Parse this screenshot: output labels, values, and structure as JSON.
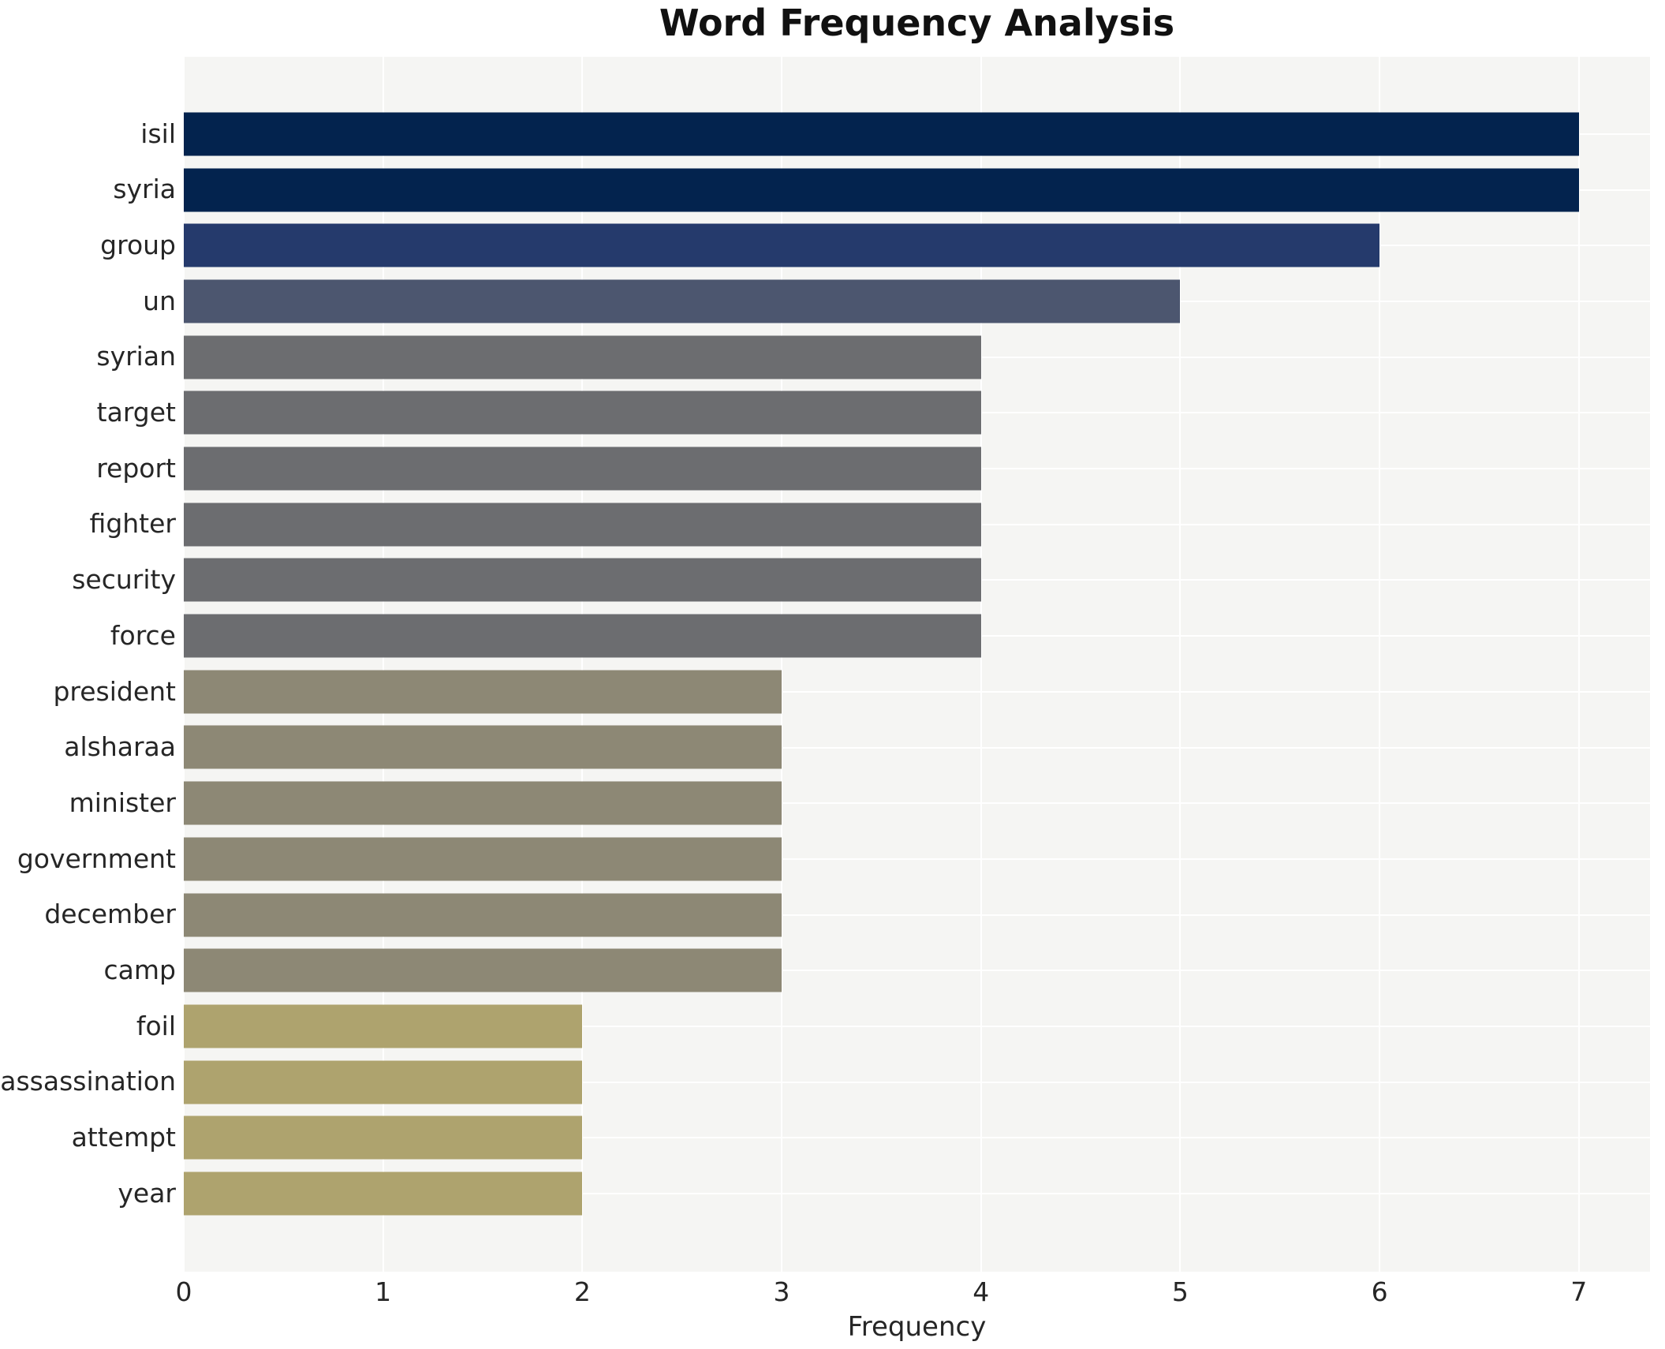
{
  "title": "Word Frequency Analysis",
  "chart_data": {
    "type": "bar",
    "orientation": "horizontal",
    "title": "Word Frequency Analysis",
    "xlabel": "Frequency",
    "ylabel": "",
    "xlim": [
      0,
      7.357
    ],
    "x_ticks": [
      0,
      1,
      2,
      3,
      4,
      5,
      6,
      7
    ],
    "grid": true,
    "legend": "none",
    "plot_background": "#f5f5f3",
    "grid_color": "#ffffff",
    "text_color": "#262626",
    "categories": [
      "isil",
      "syria",
      "group",
      "un",
      "syrian",
      "target",
      "report",
      "fighter",
      "security",
      "force",
      "president",
      "alsharaa",
      "minister",
      "government",
      "december",
      "camp",
      "foil",
      "assassination",
      "attempt",
      "year"
    ],
    "values": [
      7,
      7,
      6,
      5,
      4,
      4,
      4,
      4,
      4,
      4,
      3,
      3,
      3,
      3,
      3,
      3,
      2,
      2,
      2,
      2
    ],
    "bar_colors": [
      "#03234e",
      "#03234e",
      "#253a6c",
      "#4c566f",
      "#6c6d70",
      "#6c6d70",
      "#6c6d70",
      "#6c6d70",
      "#6c6d70",
      "#6c6d70",
      "#8d8875",
      "#8d8875",
      "#8d8875",
      "#8d8875",
      "#8d8875",
      "#8d8875",
      "#aea36e",
      "#aea36e",
      "#aea36e",
      "#aea36e"
    ]
  }
}
